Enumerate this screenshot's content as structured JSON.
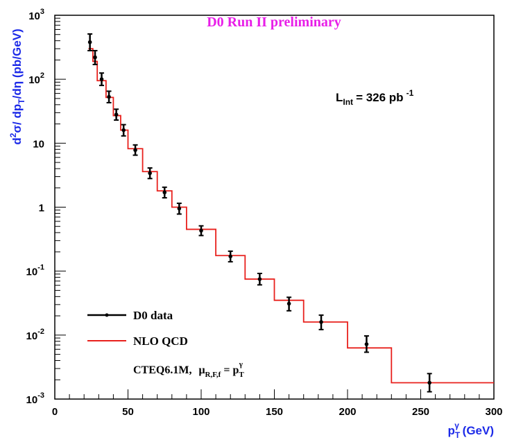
{
  "chart_data": {
    "type": "line",
    "title": "D0 Run II preliminary",
    "luminosity_label": "L",
    "luminosity_sub": "Int",
    "luminosity_value": "= 326 pb",
    "luminosity_sup": "-1",
    "ylabel": "d²σ/ dp_T/dη (pb/GeV)",
    "xlabel": "p_T^γ (GeV)",
    "xlim": [
      0,
      300
    ],
    "ylim": [
      0.001,
      1000
    ],
    "yscale": "log",
    "x_ticks": [
      "0",
      "50",
      "100",
      "150",
      "200",
      "250",
      "300"
    ],
    "y_ticks": [
      {
        "base": "10",
        "exp": "-3"
      },
      {
        "base": "10",
        "exp": "-2"
      },
      {
        "base": "10",
        "exp": "-1"
      },
      {
        "base": "1",
        "exp": ""
      },
      {
        "base": "10",
        "exp": ""
      },
      {
        "base": "10",
        "exp": "2"
      },
      {
        "base": "10",
        "exp": "3"
      }
    ],
    "legend": {
      "placement": "bottom-left",
      "data_label": "D0 data",
      "theory_label": "NLO QCD",
      "pdf_label": "CTEQ6.1M,",
      "scale_label": "μ",
      "scale_sub": "R,F,f",
      "scale_eq": "= p",
      "scale_eq_sub": "T",
      "scale_eq_sup": "γ"
    },
    "series": [
      {
        "name": "D0 data",
        "color": "#000000",
        "x": [
          24,
          27.5,
          32,
          37,
          42,
          47,
          55,
          65,
          75,
          85,
          100,
          120,
          140,
          160,
          182,
          213,
          256
        ],
        "y": [
          380,
          220,
          100,
          53,
          28,
          16,
          7.8,
          3.4,
          1.7,
          0.95,
          0.43,
          0.17,
          0.075,
          0.031,
          0.016,
          0.0072,
          0.0018
        ],
        "y_err_up": [
          130,
          60,
          25,
          12,
          6,
          3.5,
          1.6,
          0.7,
          0.35,
          0.2,
          0.08,
          0.035,
          0.017,
          0.008,
          0.0045,
          0.0025,
          0.0007
        ],
        "y_err_down": [
          100,
          50,
          20,
          10,
          5,
          3,
          1.3,
          0.6,
          0.3,
          0.17,
          0.07,
          0.03,
          0.014,
          0.007,
          0.0038,
          0.0018,
          0.0005
        ]
      },
      {
        "name": "NLO QCD",
        "color": "#e8201c",
        "bin_edges": [
          23,
          26,
          29,
          35,
          40,
          45,
          50,
          60,
          70,
          80,
          90,
          110,
          130,
          150,
          170,
          200,
          230,
          300
        ],
        "y": [
          300,
          190,
          95,
          52,
          27,
          16,
          8.2,
          3.6,
          1.8,
          1.0,
          0.45,
          0.175,
          0.075,
          0.035,
          0.016,
          0.0063,
          0.0018
        ]
      }
    ]
  },
  "colors": {
    "title": "#e81ee8",
    "axis_label": "#1c2ae8",
    "frame": "#000000"
  }
}
